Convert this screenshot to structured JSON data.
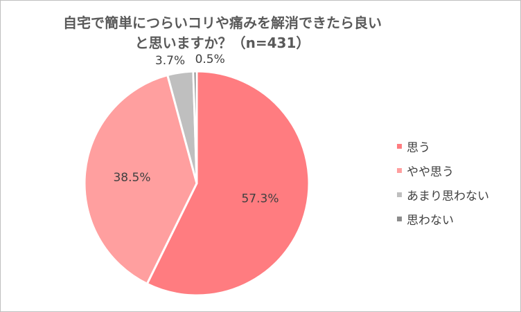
{
  "chart_data": {
    "type": "pie",
    "title": "自宅で簡単につらいコリや痛みを解消できたら良いと思いますか？（n=431）",
    "title_lines": [
      "自宅で簡単につらいコリや痛みを解消できたら良い",
      "と思いますか？（n=431）"
    ],
    "unit": "%",
    "legend_position": "right",
    "slices": [
      {
        "name": "思う",
        "value": 57.3,
        "label": "57.3%",
        "color": "#ff7c80"
      },
      {
        "name": "やや思う",
        "value": 38.5,
        "label": "38.5%",
        "color": "#ff9f9f"
      },
      {
        "name": "あまり思わない",
        "value": 3.7,
        "label": "3.7%",
        "color": "#bfbfbf"
      },
      {
        "name": "思わない",
        "value": 0.5,
        "label": "0.5%",
        "color": "#8c8c8c"
      }
    ]
  }
}
